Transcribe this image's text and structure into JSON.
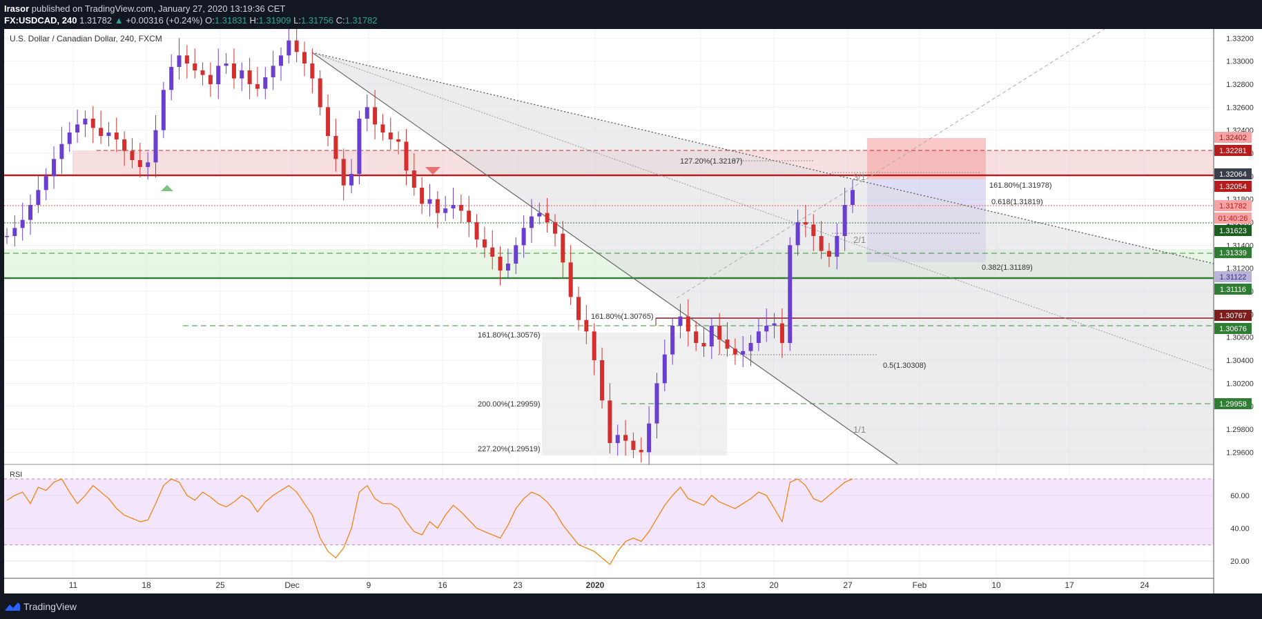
{
  "header": {
    "author": "Irasor",
    "published": "published on TradingView.com, January 27, 2020 13:19:36 CET",
    "symbol": "FX:USDCAD, 240",
    "last": "1.31782",
    "change": "+0.00316 (+0.24%)",
    "open_label": "O:",
    "open": "1.31831",
    "high_label": "H:",
    "high": "1.31909",
    "low_label": "L:",
    "low": "1.31756",
    "close_label": "C:",
    "close": "1.31782"
  },
  "chart_title": "U.S. Dollar / Canadian Dollar, 240, FXCM",
  "footer": {
    "brand": "TradingView",
    "logo_icon": "tradingview-logo-icon"
  },
  "chart_data": {
    "type": "candlestick",
    "price_axis": {
      "ticks": [
        "1.33200",
        "1.33000",
        "1.32800",
        "1.32600",
        "1.32400",
        "1.32200",
        "1.32000",
        "1.31800",
        "1.31600",
        "1.31400",
        "1.31200",
        "1.31000",
        "1.30800",
        "1.30600",
        "1.30400",
        "1.30200",
        "1.30000",
        "1.29800",
        "1.29600"
      ],
      "range": [
        1.295,
        1.3328
      ]
    },
    "time_axis": [
      "11",
      "18",
      "25",
      "Dec",
      "9",
      "16",
      "23",
      "2020",
      "13",
      "20",
      "27",
      "Feb",
      "10",
      "17",
      "24"
    ],
    "price_labels": [
      {
        "text": "1.32402",
        "color": "#f7a3a3",
        "fg": "#8b1a1a"
      },
      {
        "text": "1.32281",
        "color": "#b71c1c",
        "fg": "#ffffff"
      },
      {
        "text": "1.32064",
        "color": "#3a3e4a",
        "fg": "#ffffff"
      },
      {
        "text": "1.32054",
        "color": "#b71c1c",
        "fg": "#ffffff"
      },
      {
        "text": "1.31782",
        "color": "#f7a3a3",
        "fg": "#b71c1c"
      },
      {
        "text": "01:40:26",
        "color": "#f7a3a3",
        "fg": "#b71c1c"
      },
      {
        "text": "1.31623",
        "color": "#1b5e20",
        "fg": "#ffffff"
      },
      {
        "text": "1.31339",
        "color": "#2e7d32",
        "fg": "#ffffff"
      },
      {
        "text": "1.31122",
        "color": "#b9b2d9",
        "fg": "#3a2b7a"
      },
      {
        "text": "1.31116",
        "color": "#2e7d32",
        "fg": "#ffffff"
      },
      {
        "text": "1.30767",
        "color": "#7f1d1d",
        "fg": "#ffffff"
      },
      {
        "text": "1.30676",
        "color": "#2e7d32",
        "fg": "#ffffff"
      },
      {
        "text": "1.29958",
        "color": "#2e7d32",
        "fg": "#ffffff"
      }
    ],
    "annotations": [
      {
        "text": "127.20%(1.32187)"
      },
      {
        "text": "161.80%(1.31978)"
      },
      {
        "text": "0.618(1.31819)"
      },
      {
        "text": "2/1"
      },
      {
        "text": "0.382(1.31189)"
      },
      {
        "text": "161.80%(1.30765)"
      },
      {
        "text": "161.80%(1.30576)"
      },
      {
        "text": "0.5(1.30308)"
      },
      {
        "text": "200.00%(1.29959)"
      },
      {
        "text": "227.20%(1.29519)"
      },
      {
        "text": "1/1"
      },
      {
        "text": "3/1"
      }
    ],
    "price_series": [
      1.3148,
      1.3155,
      1.3162,
      1.3175,
      1.3188,
      1.32,
      1.3215,
      1.3228,
      1.3238,
      1.3245,
      1.325,
      1.3242,
      1.3235,
      1.3238,
      1.3232,
      1.3222,
      1.3214,
      1.3208,
      1.3212,
      1.324,
      1.3275,
      1.3295,
      1.3305,
      1.3298,
      1.3292,
      1.3288,
      1.328,
      1.3296,
      1.3298,
      1.3285,
      1.3292,
      1.328,
      1.3276,
      1.3286,
      1.3296,
      1.3305,
      1.3318,
      1.3308,
      1.3298,
      1.3285,
      1.326,
      1.3235,
      1.3215,
      1.3192,
      1.3202,
      1.325,
      1.326,
      1.3245,
      1.3238,
      1.3232,
      1.323,
      1.3205,
      1.319,
      1.3176,
      1.318,
      1.3168,
      1.3172,
      1.3175,
      1.317,
      1.316,
      1.3145,
      1.3138,
      1.313,
      1.3118,
      1.3124,
      1.314,
      1.3155,
      1.3165,
      1.3168,
      1.316,
      1.315,
      1.3125,
      1.3095,
      1.3075,
      1.3065,
      1.304,
      1.3005,
      1.2968,
      1.2975,
      1.297,
      1.2962,
      1.296,
      1.2985,
      1.302,
      1.3045,
      1.307,
      1.3078,
      1.3065,
      1.3055,
      1.3052,
      1.307,
      1.3058,
      1.305,
      1.3045,
      1.3048,
      1.3055,
      1.3065,
      1.307,
      1.3072,
      1.3055,
      1.314,
      1.316,
      1.3158,
      1.3148,
      1.3135,
      1.313,
      1.3148,
      1.3175,
      1.3188
    ],
    "rsi": {
      "label": "RSI",
      "ticks": [
        "60.00",
        "40.00",
        "20.00"
      ],
      "levels": [
        70,
        30
      ],
      "range": [
        10,
        78
      ],
      "values": [
        57,
        60,
        62,
        55,
        65,
        63,
        68,
        70,
        62,
        55,
        60,
        66,
        62,
        58,
        52,
        48,
        46,
        44,
        45,
        55,
        66,
        70,
        68,
        60,
        57,
        62,
        59,
        55,
        53,
        56,
        60,
        57,
        50,
        56,
        60,
        63,
        66,
        62,
        55,
        48,
        34,
        26,
        22,
        28,
        40,
        62,
        66,
        58,
        55,
        55,
        52,
        44,
        38,
        36,
        44,
        40,
        48,
        54,
        50,
        45,
        40,
        38,
        36,
        34,
        42,
        52,
        58,
        62,
        60,
        56,
        50,
        42,
        36,
        30,
        28,
        26,
        22,
        18,
        26,
        32,
        34,
        32,
        38,
        46,
        54,
        60,
        65,
        58,
        56,
        54,
        60,
        56,
        54,
        52,
        55,
        58,
        62,
        60,
        52,
        44,
        68,
        70,
        66,
        58,
        56,
        60,
        64,
        68,
        70
      ]
    }
  }
}
